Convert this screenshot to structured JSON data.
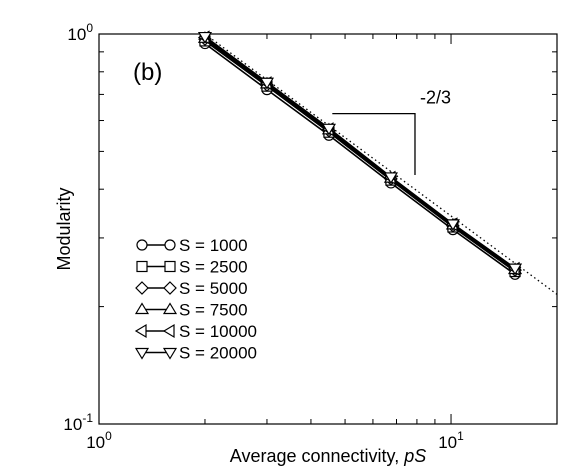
{
  "chart_data": {
    "type": "line",
    "panel_label": "(b)",
    "xlabel": "Average connectivity, ",
    "xlabel_italic": "pS",
    "ylabel": "Modularity",
    "xscale": "log",
    "yscale": "log",
    "xlim": [
      1,
      20
    ],
    "ylim": [
      0.1,
      1
    ],
    "x_ticks": [
      {
        "value": 1,
        "base": "10",
        "exp": "0"
      },
      {
        "value": 10,
        "base": "10",
        "exp": "1"
      }
    ],
    "y_ticks": [
      {
        "value": 0.1,
        "base": "10",
        "exp": "-1"
      },
      {
        "value": 1,
        "base": "10",
        "exp": "0"
      }
    ],
    "x": [
      2,
      3,
      4.5,
      6.75,
      10.125,
      15.2
    ],
    "series": [
      {
        "name": "S = 1000",
        "marker": "circle",
        "values": [
          0.945,
          0.72,
          0.55,
          0.415,
          0.315,
          0.242
        ]
      },
      {
        "name": "S = 2500",
        "marker": "square",
        "values": [
          0.96,
          0.735,
          0.56,
          0.422,
          0.32,
          0.246
        ]
      },
      {
        "name": "S = 5000",
        "marker": "diamond",
        "values": [
          0.97,
          0.74,
          0.565,
          0.425,
          0.322,
          0.248
        ]
      },
      {
        "name": "S = 7500",
        "marker": "triangle-up",
        "values": [
          0.975,
          0.745,
          0.568,
          0.427,
          0.324,
          0.249
        ]
      },
      {
        "name": "S = 10000",
        "marker": "triangle-left",
        "values": [
          0.98,
          0.748,
          0.57,
          0.428,
          0.325,
          0.25
        ]
      },
      {
        "name": "S = 20000",
        "marker": "triangle-down",
        "values": [
          0.985,
          0.752,
          0.573,
          0.43,
          0.326,
          0.251
        ]
      }
    ],
    "reference_line": {
      "style": "dotted",
      "x": [
        2,
        20
      ],
      "y": [
        1.0,
        0.215
      ]
    },
    "slope_annotation": {
      "label": "-2/3",
      "x_start": 4.6,
      "x_end": 7.9,
      "y_start": 0.625,
      "y_end": 0.435
    },
    "legend_placement": "bottom-left",
    "grid": false
  }
}
